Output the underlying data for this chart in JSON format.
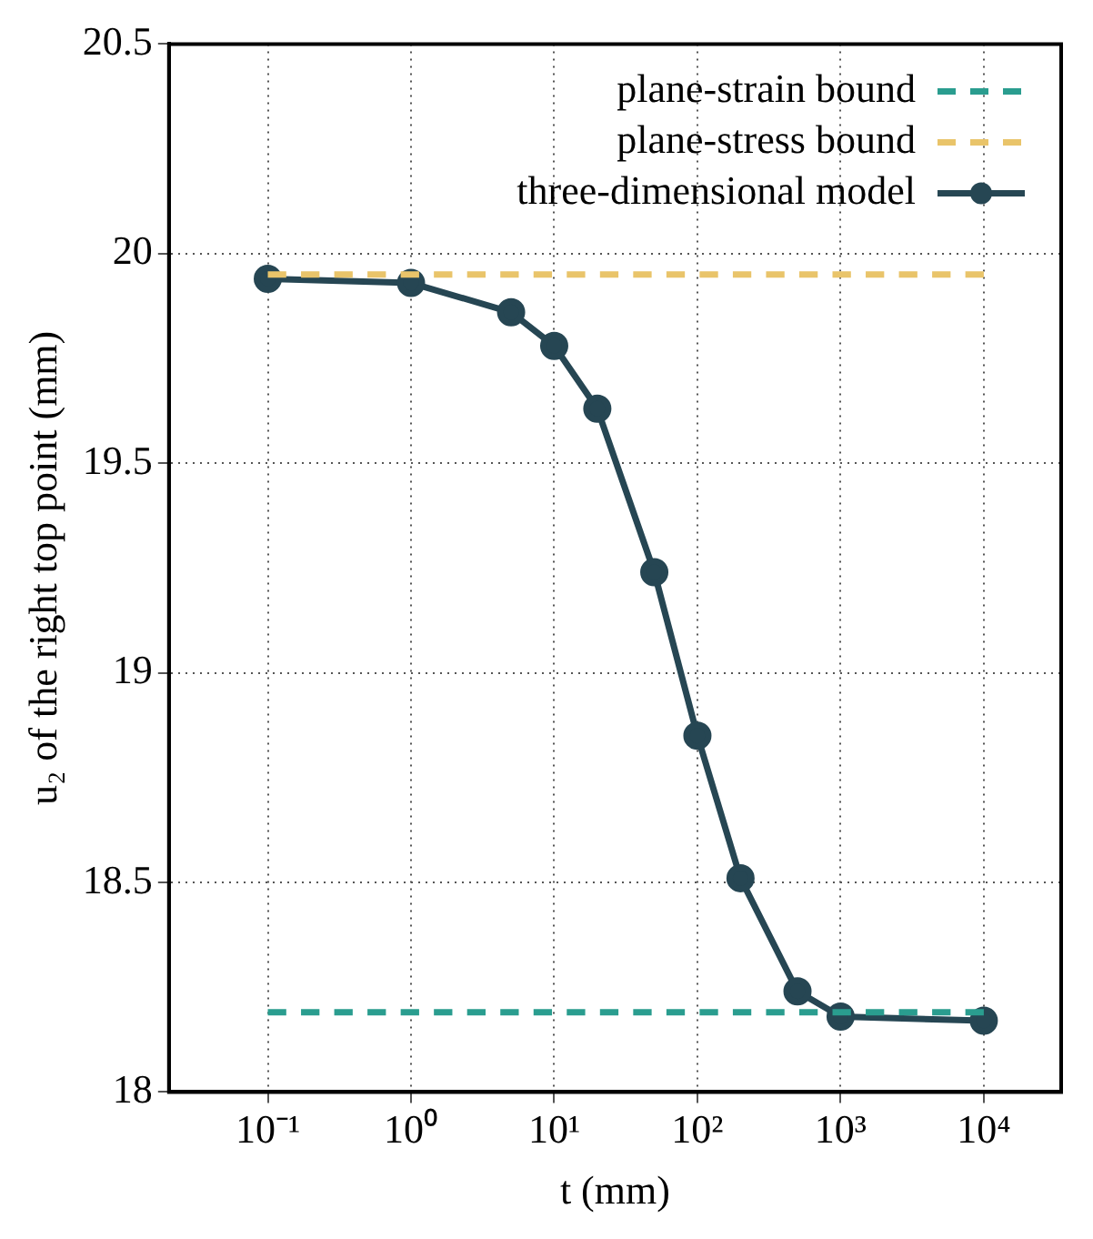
{
  "chart_data": {
    "type": "line",
    "xlabel": "t (mm)",
    "ylabel": "u₂ of the right top point (mm)",
    "log": "x",
    "xlim": [
      0.0204,
      34700
    ],
    "xticks": [
      {
        "value": 0.1,
        "label": "10⁻¹"
      },
      {
        "value": 1,
        "label": "10⁰"
      },
      {
        "value": 10,
        "label": "10¹"
      },
      {
        "value": 100,
        "label": "10²"
      },
      {
        "value": 1000,
        "label": "10³"
      },
      {
        "value": 10000,
        "label": "10⁴"
      }
    ],
    "ylim": [
      18,
      20.5
    ],
    "yticks": [
      18,
      18.5,
      19,
      19.5,
      20,
      20.5
    ],
    "grid": true,
    "legend": "top right",
    "series": [
      {
        "name": "plane-strain bound",
        "color": "#2a9d8f",
        "x": [
          0.1,
          10000
        ],
        "values": [
          18.19,
          18.19
        ],
        "line_style": "dashed",
        "marker": "none"
      },
      {
        "name": "plane-stress bound",
        "color": "#e9c46a",
        "x": [
          0.1,
          10000
        ],
        "values": [
          19.95,
          19.95
        ],
        "line_style": "dashed",
        "marker": "none"
      },
      {
        "name": "three-dimensional model",
        "color": "#264653",
        "x": [
          0.1,
          1,
          5,
          10,
          20,
          50,
          100,
          200,
          500,
          1000,
          10000
        ],
        "values": [
          19.94,
          19.93,
          19.86,
          19.78,
          19.63,
          19.24,
          18.85,
          18.51,
          18.24,
          18.18,
          18.17
        ],
        "line_style": "solid",
        "marker": "circle"
      }
    ]
  }
}
